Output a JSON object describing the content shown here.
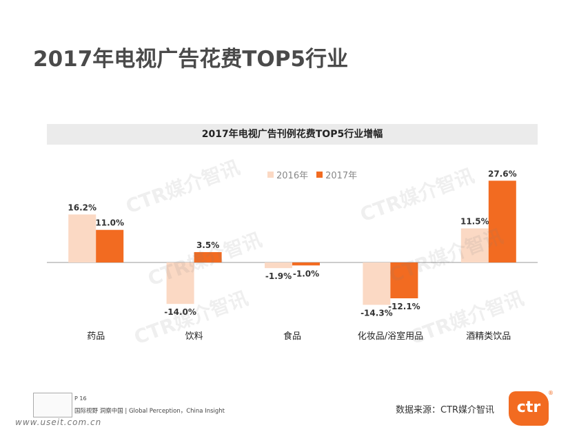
{
  "page": {
    "title": "2017年电视广告花费TOP5行业",
    "page_number": "P 16",
    "slogan": "国际视野  洞察中国 | Global Perception，China Insight",
    "source": "数据来源：CTR媒介智讯",
    "url_watermark": "www.useit.com.cn",
    "logo_text": "ctr",
    "logo_mark": "®",
    "watermark_text": "CTR媒介智讯"
  },
  "colors": {
    "series_2016": "#fbd9c4",
    "series_2017": "#f26b21",
    "axis": "#999999"
  },
  "chart_data": {
    "type": "bar",
    "title": "2017年电视广告刊例花费TOP5行业增幅",
    "categories": [
      "药品",
      "饮料",
      "食品",
      "化妆品/浴室用品",
      "酒精类饮品"
    ],
    "series": [
      {
        "name": "2016年",
        "values": [
          16.2,
          -14.0,
          -1.9,
          -14.3,
          11.5
        ]
      },
      {
        "name": "2017年",
        "values": [
          11.0,
          3.5,
          -1.0,
          -12.1,
          27.6
        ]
      }
    ],
    "data_labels": [
      [
        "16.2%",
        "-14.0%",
        "-1.9%",
        "-14.3%",
        "11.5%"
      ],
      [
        "11.0%",
        "3.5%",
        "-1.0%",
        "-12.1%",
        "27.6%"
      ]
    ],
    "legend_position": "top-center",
    "grid": false,
    "ylim": [
      -16,
      30
    ]
  }
}
